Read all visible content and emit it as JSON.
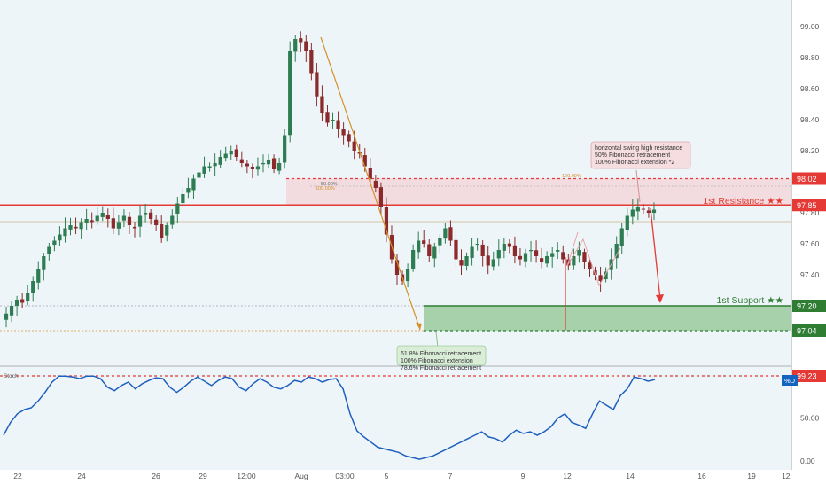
{
  "theme": {
    "background": "#eef5f9",
    "up_color": "#2e7d52",
    "down_color": "#8b2a2a",
    "resistance_color": "#e53935",
    "support_color": "#2e7d32",
    "support_zone_fill": "#8fc48f",
    "resistance_zone_fill": "#f3d3d6",
    "stoch_line": "#1f5fbf",
    "fib_line_color": "#d4922b",
    "axis_text": "#555555",
    "badge_red": "#e53935",
    "badge_green": "#2e7d32",
    "badge_blue": "#1565c0"
  },
  "chart_data": [
    {
      "type": "candlestick",
      "panel": "price",
      "x_tick_labels": [
        "22",
        "24",
        "26",
        "29",
        "12:00",
        "Aug",
        "03:00",
        "5",
        "7",
        "9",
        "12",
        "14",
        "16",
        "19",
        "12:"
      ],
      "ylim": [
        96.94,
        99.08
      ],
      "y_tick_labels": [
        "99.00",
        "98.80",
        "98.60",
        "98.40",
        "98.20",
        "97.80",
        "97.60",
        "97.40"
      ],
      "price_levels": [
        {
          "label": "98.02",
          "value": 98.02,
          "style": "dotted-red",
          "badge_color": "#e53935"
        },
        {
          "label": "97.85",
          "value": 97.85,
          "style": "solid-red",
          "badge_color": "#e53935"
        },
        {
          "label": "97.20",
          "value": 97.2,
          "style": "solid-green",
          "badge_color": "#2e7d32"
        },
        {
          "label": "97.04",
          "value": 97.04,
          "style": "dotted-green",
          "badge_color": "#2e7d32"
        }
      ],
      "zones": [
        {
          "name": "resistance-zone",
          "from": 97.85,
          "to": 98.02
        },
        {
          "name": "support-zone",
          "from": 97.04,
          "to": 97.2
        }
      ],
      "level_labels": {
        "resistance": "1st Resistance ★★",
        "support": "1st Support ★★"
      },
      "annotations": {
        "resistance_note": [
          "horizontal swing high resistance",
          "50% Fibonacci retracement",
          "100% Fibonacci extension *2"
        ],
        "support_note": [
          "61.8% Fibonacci retracement",
          "100% Fibonacci extension",
          "78.6% Fibonacci retracement"
        ],
        "fib_labels": [
          "50.00%",
          "100.00%",
          "100.00%"
        ]
      },
      "close_series": [
        97.15,
        97.2,
        97.24,
        97.22,
        97.28,
        97.36,
        97.44,
        97.52,
        97.58,
        97.62,
        97.66,
        97.7,
        97.72,
        97.7,
        97.74,
        97.76,
        97.74,
        97.78,
        97.8,
        97.76,
        97.7,
        97.74,
        97.78,
        97.72,
        97.7,
        97.78,
        97.8,
        97.76,
        97.72,
        97.64,
        97.72,
        97.78,
        97.86,
        97.92,
        97.96,
        98.02,
        98.06,
        98.1,
        98.1,
        98.12,
        98.16,
        98.18,
        98.2,
        98.16,
        98.12,
        98.1,
        98.08,
        98.1,
        98.12,
        98.14,
        98.08,
        98.12,
        98.3,
        98.84,
        98.92,
        98.9,
        98.84,
        98.7,
        98.55,
        98.44,
        98.38,
        98.4,
        98.34,
        98.3,
        98.26,
        98.2,
        98.18,
        98.1,
        98.02,
        97.96,
        97.84,
        97.66,
        97.5,
        97.4,
        97.36,
        97.44,
        97.56,
        97.62,
        97.6,
        97.52,
        97.58,
        97.64,
        97.7,
        97.62,
        97.5,
        97.46,
        97.52,
        97.58,
        97.6,
        97.52,
        97.46,
        97.5,
        97.56,
        97.6,
        97.58,
        97.52,
        97.5,
        97.54,
        97.56,
        97.52,
        97.48,
        97.52,
        97.54,
        97.56,
        97.5,
        97.46,
        97.52,
        97.56,
        97.48,
        97.44,
        97.4,
        97.36,
        97.42,
        97.5,
        97.6,
        97.7,
        97.78,
        97.82,
        97.84,
        97.82,
        97.8,
        97.82
      ]
    },
    {
      "type": "line",
      "panel": "oscillator",
      "indicator_label": "Stoch",
      "series_badge": "%D",
      "ylim": [
        -5,
        105
      ],
      "y_tick_labels": [
        "99.23",
        "50.00",
        "0.00"
      ],
      "level_line": 99.23,
      "values": [
        30,
        45,
        55,
        60,
        62,
        70,
        80,
        92,
        99,
        99,
        98,
        96,
        99,
        99,
        96,
        86,
        82,
        88,
        92,
        84,
        90,
        94,
        97,
        96,
        86,
        80,
        86,
        93,
        98,
        93,
        88,
        94,
        98,
        96,
        86,
        82,
        90,
        96,
        92,
        86,
        84,
        88,
        94,
        92,
        98,
        96,
        92,
        95,
        96,
        84,
        55,
        35,
        28,
        22,
        16,
        14,
        12,
        10,
        6,
        4,
        2,
        4,
        6,
        10,
        14,
        18,
        22,
        26,
        30,
        34,
        28,
        26,
        22,
        30,
        36,
        32,
        34,
        30,
        34,
        40,
        50,
        55,
        45,
        42,
        38,
        55,
        70,
        65,
        60,
        76,
        84,
        98,
        96,
        93,
        95
      ]
    }
  ],
  "chart_area": {
    "name": "price-chart-panel"
  }
}
